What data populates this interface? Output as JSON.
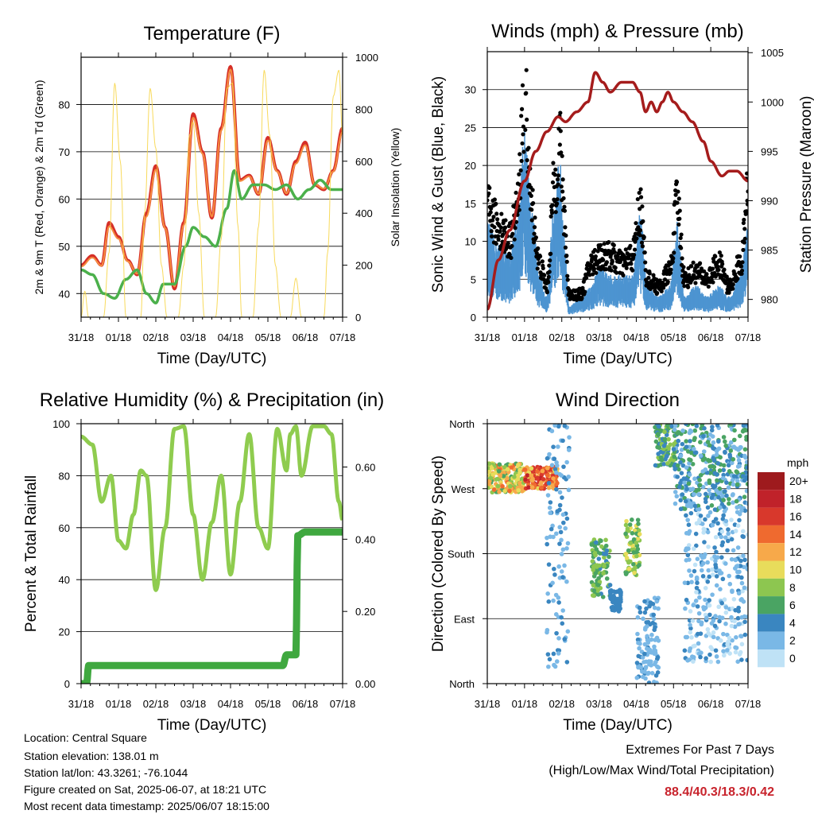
{
  "footer": {
    "location": "Location: Central Square",
    "elevation": "Station elevation: 138.01 m",
    "latlon": "Station lat/lon: 43.3261; -76.1044",
    "created": "Figure created on Sat, 2025-06-07, at 18:21 UTC",
    "recent": "Most recent data timestamp: 2025/06/07 18:15:00"
  },
  "extremes": {
    "title": "Extremes For Past 7 Days",
    "subtitle": "(High/Low/Max Wind/Total Precipitation)",
    "values": "88.4/40.3/18.3/0.42",
    "color": "#c8232c"
  },
  "chart_data": [
    {
      "type": "line",
      "title": "Temperature (F)",
      "xlabel": "Time (Day/UTC)",
      "ylabel": "2m & 9m T (Red, Orange) & 2m Td (Green)",
      "y2label": "Solar Insolation (Yellow)",
      "x_ticks": [
        "31/18",
        "01/18",
        "02/18",
        "03/18",
        "04/18",
        "05/18",
        "06/18",
        "07/18"
      ],
      "xlim": [
        0,
        7
      ],
      "ylim": [
        35,
        90
      ],
      "y_ticks": [
        40,
        50,
        60,
        70,
        80
      ],
      "y2lim": [
        0,
        1000
      ],
      "y2_ticks": [
        0,
        200,
        400,
        600,
        800,
        1000
      ],
      "series": [
        {
          "name": "2m T",
          "color": "#d62f27",
          "x": [
            0,
            0.3,
            0.55,
            0.75,
            1.0,
            1.25,
            1.5,
            1.75,
            2.0,
            2.25,
            2.5,
            2.75,
            3.0,
            3.25,
            3.5,
            3.75,
            4.0,
            4.25,
            4.5,
            4.75,
            5.0,
            5.25,
            5.5,
            5.75,
            6.0,
            6.25,
            6.5,
            6.75,
            7.0
          ],
          "y": [
            46,
            48,
            46,
            55,
            52,
            47,
            44,
            57,
            67,
            54,
            41,
            55,
            78,
            70,
            56,
            75,
            88,
            64,
            65,
            61,
            73,
            66,
            61,
            68,
            72,
            63,
            62,
            66,
            75
          ]
        },
        {
          "name": "9m T",
          "color": "#f58d40",
          "x": [
            0,
            0.3,
            0.55,
            0.75,
            1.0,
            1.25,
            1.5,
            1.75,
            2.0,
            2.25,
            2.5,
            2.75,
            3.0,
            3.25,
            3.5,
            3.75,
            4.0,
            4.25,
            4.5,
            4.75,
            5.0,
            5.25,
            5.5,
            5.75,
            6.0,
            6.25,
            6.5,
            6.75,
            7.0
          ],
          "y": [
            45.7,
            47.6,
            45.9,
            54.2,
            51.6,
            46.8,
            44.2,
            56.3,
            66.2,
            53.8,
            41.5,
            54.5,
            77.2,
            69.6,
            56.3,
            74.5,
            87.4,
            63.8,
            64.8,
            61.1,
            72.4,
            65.8,
            61.2,
            67.5,
            71.4,
            63.1,
            62.2,
            65.8,
            74.2
          ]
        },
        {
          "name": "2m Td",
          "color": "#4bb04b",
          "x": [
            0,
            0.3,
            0.6,
            0.9,
            1.2,
            1.5,
            1.75,
            2.0,
            2.2,
            2.5,
            2.8,
            3.0,
            3.3,
            3.6,
            3.9,
            4.1,
            4.3,
            4.6,
            4.9,
            5.2,
            5.5,
            5.8,
            6.1,
            6.4,
            6.7,
            7.0
          ],
          "y": [
            45,
            44,
            40,
            39,
            43,
            45,
            40,
            38,
            42,
            42,
            50,
            54,
            52,
            50,
            58,
            66,
            60,
            63,
            63,
            62,
            63,
            60,
            62,
            64,
            62,
            62
          ]
        },
        {
          "name": "Solar",
          "axis": "y2",
          "color": "#f7d64a",
          "x": [
            0,
            0.1,
            0.2,
            0.3,
            0.45,
            0.6,
            0.75,
            0.9,
            1.05,
            1.2,
            1.35,
            1.5,
            1.6,
            1.7,
            1.85,
            2.0,
            2.15,
            2.3,
            2.5,
            2.6,
            2.75,
            2.9,
            3.0,
            3.15,
            3.3,
            3.5,
            3.6,
            3.75,
            3.9,
            4.05,
            4.2,
            4.3,
            4.5,
            4.6,
            4.75,
            4.9,
            5.05,
            5.2,
            5.35,
            5.5,
            5.6,
            5.75,
            5.9,
            6.05,
            6.2,
            6.35,
            6.5,
            6.6,
            6.75,
            6.9,
            7.0
          ],
          "y": [
            0,
            100,
            0,
            0,
            0,
            0,
            250,
            900,
            600,
            0,
            0,
            0,
            0,
            400,
            880,
            650,
            200,
            0,
            0,
            0,
            200,
            700,
            750,
            400,
            0,
            0,
            0,
            300,
            880,
            900,
            350,
            0,
            0,
            0,
            350,
            950,
            700,
            200,
            0,
            0,
            0,
            150,
            0,
            0,
            0,
            0,
            0,
            250,
            850,
            950,
            700
          ]
        }
      ]
    },
    {
      "type": "line",
      "title": "Winds (mph) & Pressure (mb)",
      "xlabel": "Time (Day/UTC)",
      "ylabel": "Sonic Wind & Gust (Blue, Black)",
      "y2label": "Station Pressure (Maroon)",
      "x_ticks": [
        "31/18",
        "01/18",
        "02/18",
        "03/18",
        "04/18",
        "05/18",
        "06/18",
        "07/18"
      ],
      "xlim": [
        0,
        7
      ],
      "ylim": [
        0,
        35
      ],
      "y_ticks": [
        0,
        5,
        10,
        15,
        20,
        25,
        30
      ],
      "y2lim": [
        978.2,
        1005.1
      ],
      "y2_ticks": [
        980,
        985,
        990,
        995,
        1000,
        1005
      ],
      "series": [
        {
          "name": "Wind",
          "color": "#4d94d1",
          "x": [
            0,
            0.3,
            0.6,
            0.8,
            1.0,
            1.2,
            1.4,
            1.6,
            1.8,
            1.95,
            2.05,
            2.2,
            2.5,
            2.8,
            3.0,
            3.3,
            3.6,
            3.9,
            4.1,
            4.3,
            4.6,
            4.9,
            5.1,
            5.3,
            5.6,
            5.9,
            6.2,
            6.5,
            6.8,
            7.0
          ],
          "y": [
            9,
            7,
            6,
            9,
            18,
            10,
            4,
            2,
            12,
            15,
            8,
            1,
            2,
            3,
            5,
            4,
            4,
            4,
            10,
            3,
            2,
            3,
            9,
            2,
            3,
            2,
            3,
            2,
            4,
            9
          ]
        },
        {
          "name": "Gust",
          "color": "#000000",
          "x": [
            0,
            0.3,
            0.6,
            0.8,
            1.0,
            1.2,
            1.4,
            1.6,
            1.8,
            1.95,
            2.05,
            2.2,
            2.5,
            2.8,
            3.0,
            3.3,
            3.6,
            3.9,
            4.1,
            4.3,
            4.6,
            4.9,
            5.1,
            5.3,
            5.6,
            5.9,
            6.2,
            6.5,
            6.8,
            7.0
          ],
          "y": [
            14,
            12,
            10,
            14,
            29,
            14,
            7,
            4,
            17,
            23,
            14,
            3,
            3,
            7,
            8,
            8,
            7,
            8,
            14,
            5,
            4,
            6,
            15,
            5,
            6,
            5,
            7,
            4,
            7,
            16
          ]
        },
        {
          "name": "Pressure",
          "axis": "y2",
          "color": "#a51c1c",
          "x": [
            0,
            0.3,
            0.6,
            1.0,
            1.3,
            1.6,
            1.9,
            2.1,
            2.4,
            2.7,
            2.9,
            3.1,
            3.3,
            3.6,
            3.9,
            4.1,
            4.25,
            4.4,
            4.55,
            4.7,
            4.85,
            5.0,
            5.25,
            5.5,
            5.8,
            6.0,
            6.3,
            6.5,
            6.7,
            7.0
          ],
          "y": [
            979,
            984,
            987,
            992,
            995,
            997,
            998.5,
            998,
            999,
            1000,
            1003,
            1002,
            1001,
            1002,
            1002,
            1001,
            999,
            1000,
            999,
            1000,
            1001,
            1000,
            999,
            998,
            996,
            994,
            992.5,
            993,
            993,
            992
          ]
        }
      ]
    },
    {
      "type": "line",
      "title": "Relative Humidity (%) & Precipitation (in)",
      "xlabel": "Time (Day/UTC)",
      "ylabel": "Percent & Total Rainfall",
      "x_ticks": [
        "31/18",
        "01/18",
        "02/18",
        "03/18",
        "04/18",
        "05/18",
        "06/18",
        "07/18"
      ],
      "xlim": [
        0,
        7
      ],
      "ylim": [
        0,
        100
      ],
      "y_ticks": [
        0,
        20,
        40,
        60,
        80,
        100
      ],
      "y2lim": [
        0,
        0.72
      ],
      "y2_ticks": [
        "0.00",
        "0.20",
        "0.40",
        "0.60"
      ],
      "series": [
        {
          "name": "RH",
          "color": "#8fcc4f",
          "x": [
            0,
            0.3,
            0.55,
            0.8,
            1.0,
            1.2,
            1.4,
            1.6,
            1.75,
            2.0,
            2.25,
            2.5,
            2.75,
            3.0,
            3.25,
            3.5,
            3.75,
            4.0,
            4.25,
            4.5,
            4.75,
            5.0,
            5.25,
            5.5,
            5.6,
            5.75,
            5.9,
            6.2,
            6.5,
            6.7,
            6.9,
            7.0
          ],
          "y": [
            95,
            92,
            70,
            80,
            55,
            52,
            65,
            82,
            80,
            36,
            60,
            98,
            99,
            65,
            40,
            62,
            80,
            42,
            70,
            96,
            60,
            52,
            98,
            82,
            96,
            99,
            80,
            99,
            99,
            96,
            70,
            63
          ]
        },
        {
          "name": "Precip",
          "axis": "y2",
          "color": "#3fa83f",
          "x": [
            0,
            0.15,
            0.2,
            5.4,
            5.5,
            5.75,
            5.8,
            6.0,
            7.0
          ],
          "y": [
            0.0,
            0.0,
            0.05,
            0.05,
            0.08,
            0.08,
            0.41,
            0.42,
            0.42
          ]
        }
      ]
    },
    {
      "type": "scatter",
      "title": "Wind Direction",
      "xlabel": "Time (Day/UTC)",
      "ylabel": "Direction (Colored By Speed)",
      "x_ticks": [
        "31/18",
        "01/18",
        "02/18",
        "03/18",
        "04/18",
        "05/18",
        "06/18",
        "07/18"
      ],
      "xlim": [
        0,
        7
      ],
      "ylim": [
        0,
        360
      ],
      "y_ticks": [
        "North",
        "East",
        "South",
        "West",
        "North"
      ],
      "legend_title": "mph",
      "legend_labels": [
        "20+",
        "18",
        "16",
        "14",
        "12",
        "10",
        "8",
        "6",
        "4",
        "2",
        "0"
      ],
      "legend_colors": [
        "#9e1a1d",
        "#c0222a",
        "#d8382c",
        "#ef6a2f",
        "#f7a94a",
        "#e8dc5b",
        "#8dc650",
        "#4aa463",
        "#3a86c0",
        "#7ab8e6",
        "#bfe2f6"
      ],
      "groups": [
        {
          "x0": 0,
          "x1": 1.0,
          "ymin": 265,
          "ymax": 305,
          "speed": [
            6,
            14
          ]
        },
        {
          "x0": 1.0,
          "x1": 1.9,
          "ymin": 270,
          "ymax": 300,
          "speed": [
            10,
            18
          ]
        },
        {
          "x0": 1.6,
          "x1": 2.2,
          "ymin": 20,
          "ymax": 360,
          "speed": [
            1,
            4
          ]
        },
        {
          "x0": 2.8,
          "x1": 3.3,
          "ymin": 120,
          "ymax": 200,
          "speed": [
            4,
            9
          ]
        },
        {
          "x0": 3.3,
          "x1": 3.6,
          "ymin": 100,
          "ymax": 130,
          "speed": [
            3,
            5
          ]
        },
        {
          "x0": 3.7,
          "x1": 4.1,
          "ymin": 150,
          "ymax": 230,
          "speed": [
            5,
            10
          ]
        },
        {
          "x0": 4.0,
          "x1": 4.6,
          "ymin": 0,
          "ymax": 120,
          "speed": [
            1,
            4
          ]
        },
        {
          "x0": 4.5,
          "x1": 5.1,
          "ymin": 300,
          "ymax": 360,
          "speed": [
            3,
            9
          ]
        },
        {
          "x0": 5.0,
          "x1": 7.0,
          "ymin": 240,
          "ymax": 360,
          "speed": [
            1,
            7
          ]
        },
        {
          "x0": 5.3,
          "x1": 7.0,
          "ymin": 30,
          "ymax": 240,
          "speed": [
            0,
            4
          ]
        }
      ]
    }
  ]
}
